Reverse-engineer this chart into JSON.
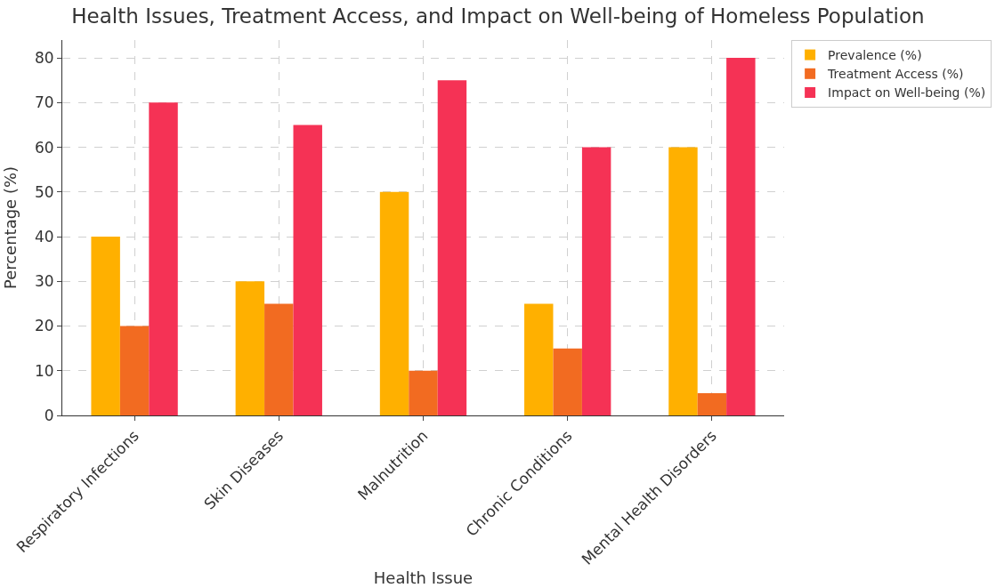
{
  "chart_data": {
    "type": "bar",
    "title": "Health Issues, Treatment Access, and Impact on Well-being of Homeless Population",
    "xlabel": "Health Issue",
    "ylabel": "Percentage (%)",
    "categories": [
      "Respiratory Infections",
      "Skin Diseases",
      "Malnutrition",
      "Chronic Conditions",
      "Mental Health Disorders"
    ],
    "series": [
      {
        "name": "Prevalence (%)",
        "color": "#ffb000",
        "values": [
          40,
          30,
          50,
          25,
          60
        ]
      },
      {
        "name": "Treatment Access (%)",
        "color": "#f26b21",
        "values": [
          20,
          25,
          10,
          15,
          5
        ]
      },
      {
        "name": "Impact on Well-being (%)",
        "color": "#f53255",
        "values": [
          70,
          65,
          75,
          60,
          80
        ]
      }
    ],
    "ylim": [
      0,
      84
    ],
    "yticks": [
      0,
      10,
      20,
      30,
      40,
      50,
      60,
      70,
      80
    ],
    "grid": true,
    "legend": "top right"
  }
}
